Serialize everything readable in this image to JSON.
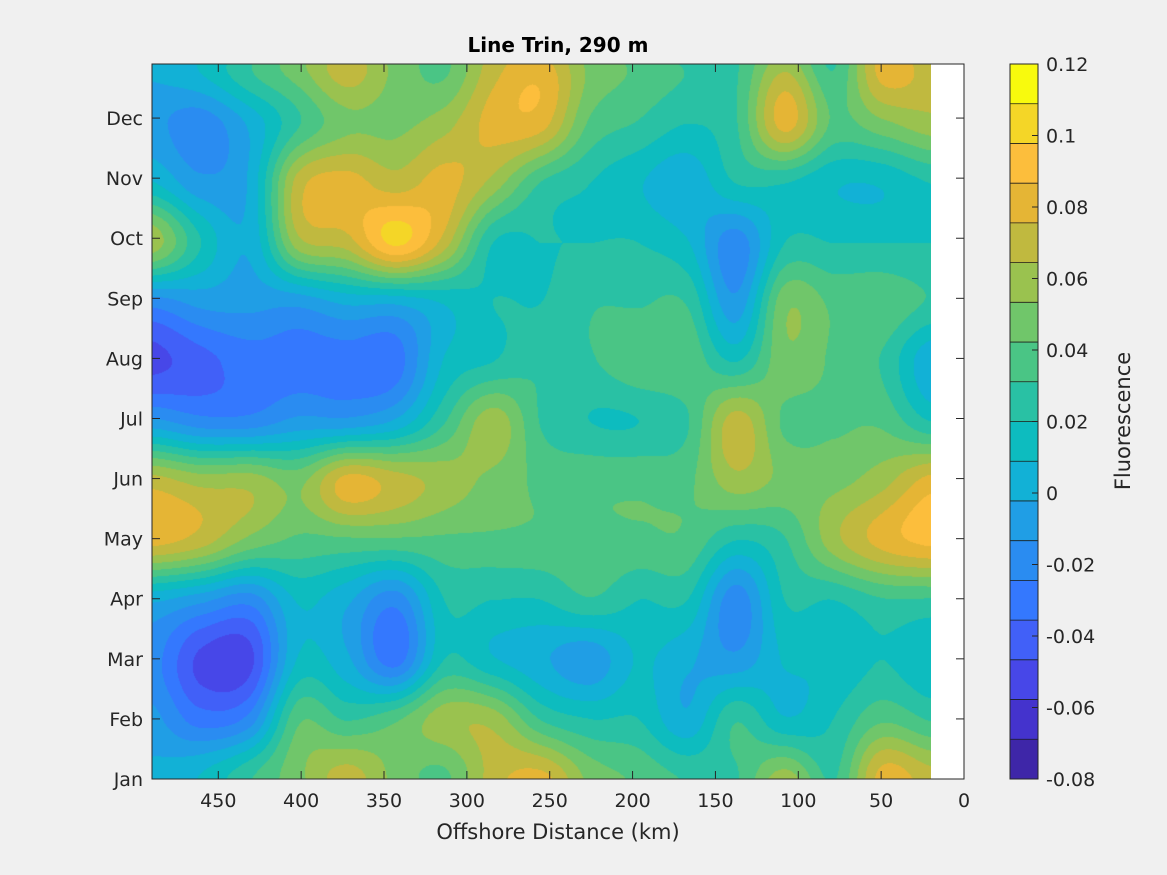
{
  "chart_data": {
    "type": "heatmap",
    "subtype": "filled-contour",
    "title": "Line Trin, 290 m",
    "xlabel": "Offshore Distance (km)",
    "ylabel": "",
    "x_reversed": true,
    "xlim": [
      0,
      490
    ],
    "x_data_max": 490,
    "x_data_min": 20,
    "x_ticks": [
      450,
      400,
      350,
      300,
      250,
      200,
      150,
      100,
      50,
      0
    ],
    "y_ticks": [
      "Jan",
      "Feb",
      "Mar",
      "Apr",
      "May",
      "Jun",
      "Jul",
      "Aug",
      "Sep",
      "Oct",
      "Nov",
      "Dec"
    ],
    "colorbar": {
      "label": "Fluorescence",
      "range": [
        -0.08,
        0.12
      ],
      "levels": [
        -0.08,
        -0.07,
        -0.06,
        -0.05,
        -0.04,
        -0.03,
        -0.02,
        -0.01,
        0,
        0.01,
        0.02,
        0.03,
        0.04,
        0.05,
        0.06,
        0.07,
        0.08,
        0.09,
        0.1,
        0.11,
        0.12
      ],
      "tick_values": [
        -0.08,
        -0.06,
        -0.04,
        -0.02,
        0,
        0.02,
        0.04,
        0.06,
        0.08,
        0.1,
        0.12
      ],
      "tick_labels": [
        "-0.08",
        "-0.06",
        "-0.04",
        "-0.02",
        "0",
        "0.02",
        "0.04",
        "0.06",
        "0.08",
        "0.1",
        "0.12"
      ],
      "colors": [
        "#3e26a8",
        "#4433cd",
        "#4747e8",
        "#4160f8",
        "#3478fe",
        "#2a8cf1",
        "#209ee5",
        "#12b1d6",
        "#0dbcbf",
        "#29c1a4",
        "#4ac585",
        "#70c66a",
        "#9ac24f",
        "#c0b93f",
        "#e5b535",
        "#fcbe3c",
        "#f4d627",
        "#f8fa0d"
      ]
    },
    "grid": false,
    "x": [
      490,
      460,
      430,
      400,
      370,
      340,
      310,
      280,
      250,
      220,
      190,
      160,
      130,
      100,
      70,
      40,
      20
    ],
    "y_months": [
      "Jan",
      "Feb",
      "Mar",
      "Apr",
      "May",
      "Jun",
      "Jul",
      "Aug",
      "Sep",
      "Oct",
      "Nov",
      "Dec",
      "Jan"
    ],
    "z": [
      [
        0.0,
        0.01,
        0.03,
        0.05,
        0.07,
        0.05,
        0.04,
        0.07,
        0.08,
        0.05,
        0.04,
        0.03,
        0.03,
        0.06,
        0.03,
        0.08,
        0.07
      ],
      [
        -0.01,
        -0.03,
        -0.02,
        0.04,
        0.03,
        0.04,
        0.06,
        0.06,
        0.03,
        0.02,
        0.02,
        0.0,
        0.03,
        0.01,
        0.02,
        0.04,
        0.03
      ],
      [
        -0.02,
        -0.05,
        -0.05,
        0.01,
        0.0,
        -0.03,
        0.02,
        0.01,
        0.0,
        -0.01,
        0.01,
        0.0,
        -0.01,
        0.01,
        0.01,
        0.02,
        0.01
      ],
      [
        0.0,
        -0.01,
        -0.02,
        0.01,
        0.0,
        -0.02,
        0.02,
        0.02,
        0.02,
        0.03,
        0.02,
        0.02,
        -0.02,
        0.02,
        0.02,
        0.03,
        0.03
      ],
      [
        0.08,
        0.07,
        0.05,
        0.04,
        0.04,
        0.04,
        0.04,
        0.04,
        0.04,
        0.04,
        0.04,
        0.04,
        0.02,
        0.03,
        0.06,
        0.08,
        0.09
      ],
      [
        0.07,
        0.06,
        0.06,
        0.05,
        0.08,
        0.07,
        0.06,
        0.05,
        0.04,
        0.04,
        0.04,
        0.04,
        0.06,
        0.05,
        0.05,
        0.06,
        0.08
      ],
      [
        -0.01,
        -0.02,
        -0.02,
        -0.01,
        -0.01,
        0.0,
        0.03,
        0.06,
        0.03,
        0.02,
        0.02,
        0.03,
        0.07,
        0.04,
        0.04,
        0.04,
        0.02
      ],
      [
        -0.05,
        -0.04,
        -0.03,
        -0.03,
        -0.03,
        -0.03,
        0.01,
        0.02,
        0.03,
        0.03,
        0.04,
        0.04,
        0.02,
        0.05,
        0.04,
        0.03,
        0.0
      ],
      [
        -0.02,
        -0.01,
        -0.01,
        -0.01,
        0.0,
        0.0,
        0.01,
        0.02,
        0.02,
        0.03,
        0.03,
        0.03,
        -0.01,
        0.05,
        0.04,
        0.04,
        0.03
      ],
      [
        0.06,
        0.02,
        0.0,
        0.06,
        0.07,
        0.1,
        0.07,
        0.02,
        0.02,
        0.02,
        0.02,
        0.01,
        -0.02,
        0.02,
        0.02,
        0.02,
        0.02
      ],
      [
        0.01,
        -0.01,
        0.0,
        0.07,
        0.08,
        0.07,
        0.08,
        0.06,
        0.03,
        0.02,
        0.01,
        0.0,
        0.02,
        0.02,
        0.01,
        0.01,
        0.02
      ],
      [
        -0.01,
        -0.02,
        0.0,
        0.03,
        0.05,
        0.05,
        0.06,
        0.08,
        0.08,
        0.04,
        0.03,
        0.02,
        0.03,
        0.08,
        0.04,
        0.05,
        0.06
      ],
      [
        0.0,
        0.01,
        0.03,
        0.05,
        0.07,
        0.05,
        0.04,
        0.07,
        0.08,
        0.05,
        0.04,
        0.03,
        0.03,
        0.06,
        0.03,
        0.08,
        0.07
      ]
    ]
  }
}
